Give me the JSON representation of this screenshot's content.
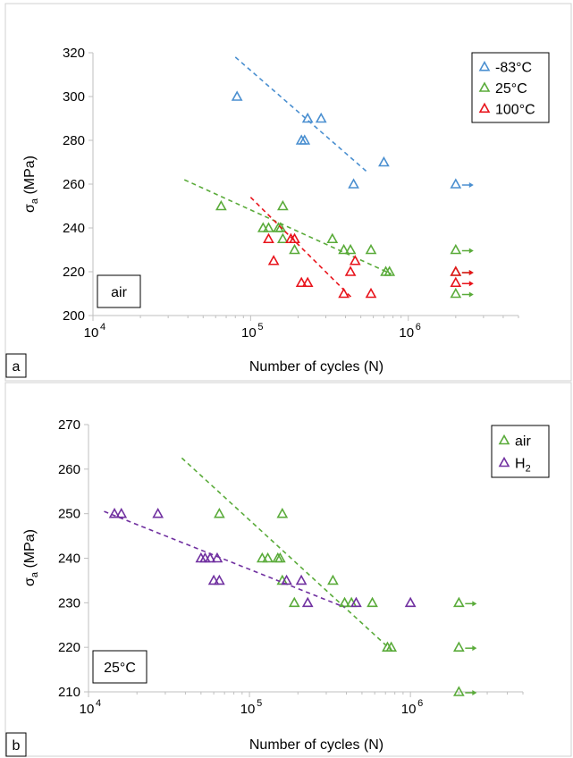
{
  "colors": {
    "blue": "#4a8fd0",
    "green": "#5aab3a",
    "red": "#e8131b",
    "purple": "#7030a0"
  },
  "chart_data": [
    {
      "type": "scatter",
      "panel_label": "a",
      "annotation": "air",
      "xlabel": "Number of cycles (N)",
      "ylabel": "σa (MPa)",
      "ylabel_main": "σ",
      "ylabel_sub": "a",
      "ylabel_unit": " (MPa)",
      "x_scale": "log",
      "xlim": [
        10000,
        5000000
      ],
      "ylim": [
        200,
        320
      ],
      "yticks": [
        200,
        220,
        240,
        260,
        280,
        300,
        320
      ],
      "xticks": [
        {
          "value": 10000,
          "base": "10",
          "exp": "4"
        },
        {
          "value": 100000,
          "base": "10",
          "exp": "5"
        },
        {
          "value": 1000000,
          "base": "10",
          "exp": "6"
        }
      ],
      "legend_position": "top-right",
      "series": [
        {
          "name": "-83°C",
          "color": "#4a8fd0",
          "points": [
            [
              82000,
              300
            ],
            [
              210000,
              280
            ],
            [
              220000,
              280
            ],
            [
              230000,
              290
            ],
            [
              280000,
              290
            ],
            [
              450000,
              260
            ],
            [
              700000,
              270
            ]
          ],
          "runouts": [
            [
              2000000,
              260
            ]
          ],
          "trend": [
            [
              80000,
              318
            ],
            [
              560000,
              265
            ]
          ]
        },
        {
          "name": "25°C",
          "color": "#5aab3a",
          "points": [
            [
              65000,
              250
            ],
            [
              120000,
              240
            ],
            [
              130000,
              240
            ],
            [
              150000,
              240
            ],
            [
              155000,
              240
            ],
            [
              160000,
              235
            ],
            [
              160000,
              250
            ],
            [
              190000,
              230
            ],
            [
              330000,
              235
            ],
            [
              390000,
              230
            ],
            [
              430000,
              230
            ],
            [
              580000,
              230
            ],
            [
              720000,
              220
            ],
            [
              760000,
              220
            ]
          ],
          "runouts": [
            [
              2000000,
              230
            ],
            [
              2000000,
              220
            ],
            [
              2000000,
              210
            ]
          ],
          "trend": [
            [
              38000,
              262
            ],
            [
              780000,
              219
            ]
          ]
        },
        {
          "name": "100°C",
          "color": "#e8131b",
          "points": [
            [
              130000,
              235
            ],
            [
              140000,
              225
            ],
            [
              180000,
              235
            ],
            [
              190000,
              235
            ],
            [
              210000,
              215
            ],
            [
              230000,
              215
            ],
            [
              390000,
              210
            ],
            [
              430000,
              220
            ],
            [
              460000,
              225
            ],
            [
              580000,
              210
            ]
          ],
          "runouts": [
            [
              2000000,
              220
            ],
            [
              2000000,
              215
            ]
          ],
          "trend": [
            [
              100000,
              254
            ],
            [
              440000,
              208
            ]
          ]
        }
      ]
    },
    {
      "type": "scatter",
      "panel_label": "b",
      "annotation": "25°C",
      "xlabel": "Number of cycles (N)",
      "ylabel": "σa (MPa)",
      "ylabel_main": "σ",
      "ylabel_sub": "a",
      "ylabel_unit": " (MPa)",
      "x_scale": "log",
      "xlim": [
        10000,
        5000000
      ],
      "ylim": [
        210,
        270
      ],
      "yticks": [
        210,
        220,
        230,
        240,
        250,
        260,
        270
      ],
      "xticks": [
        {
          "value": 10000,
          "base": "10",
          "exp": "4"
        },
        {
          "value": 100000,
          "base": "10",
          "exp": "5"
        },
        {
          "value": 1000000,
          "base": "10",
          "exp": "6"
        }
      ],
      "legend_position": "top-right",
      "series": [
        {
          "name": "air",
          "name_main": "air",
          "name_sub": "",
          "color": "#5aab3a",
          "points": [
            [
              65000,
              250
            ],
            [
              120000,
              240
            ],
            [
              130000,
              240
            ],
            [
              150000,
              240
            ],
            [
              155000,
              240
            ],
            [
              160000,
              235
            ],
            [
              160000,
              250
            ],
            [
              190000,
              230
            ],
            [
              330000,
              235
            ],
            [
              390000,
              230
            ],
            [
              430000,
              230
            ],
            [
              580000,
              230
            ],
            [
              720000,
              220
            ],
            [
              760000,
              220
            ]
          ],
          "runouts": [
            [
              2000000,
              230
            ],
            [
              2000000,
              220
            ],
            [
              2000000,
              210
            ]
          ],
          "trend": [
            [
              38000,
              262.5
            ],
            [
              780000,
              219
            ]
          ]
        },
        {
          "name": "H2",
          "name_main": "H",
          "name_sub": "2",
          "color": "#7030a0",
          "points": [
            [
              14500,
              250
            ],
            [
              16000,
              250
            ],
            [
              27000,
              250
            ],
            [
              50000,
              240
            ],
            [
              53000,
              240
            ],
            [
              57000,
              240
            ],
            [
              63000,
              240
            ],
            [
              60000,
              235
            ],
            [
              65000,
              235
            ],
            [
              170000,
              235
            ],
            [
              210000,
              235
            ],
            [
              230000,
              230
            ],
            [
              460000,
              230
            ],
            [
              1000000,
              230
            ]
          ],
          "runouts": [],
          "trend": [
            [
              12500,
              250.5
            ],
            [
              390000,
              229
            ]
          ]
        }
      ]
    }
  ]
}
